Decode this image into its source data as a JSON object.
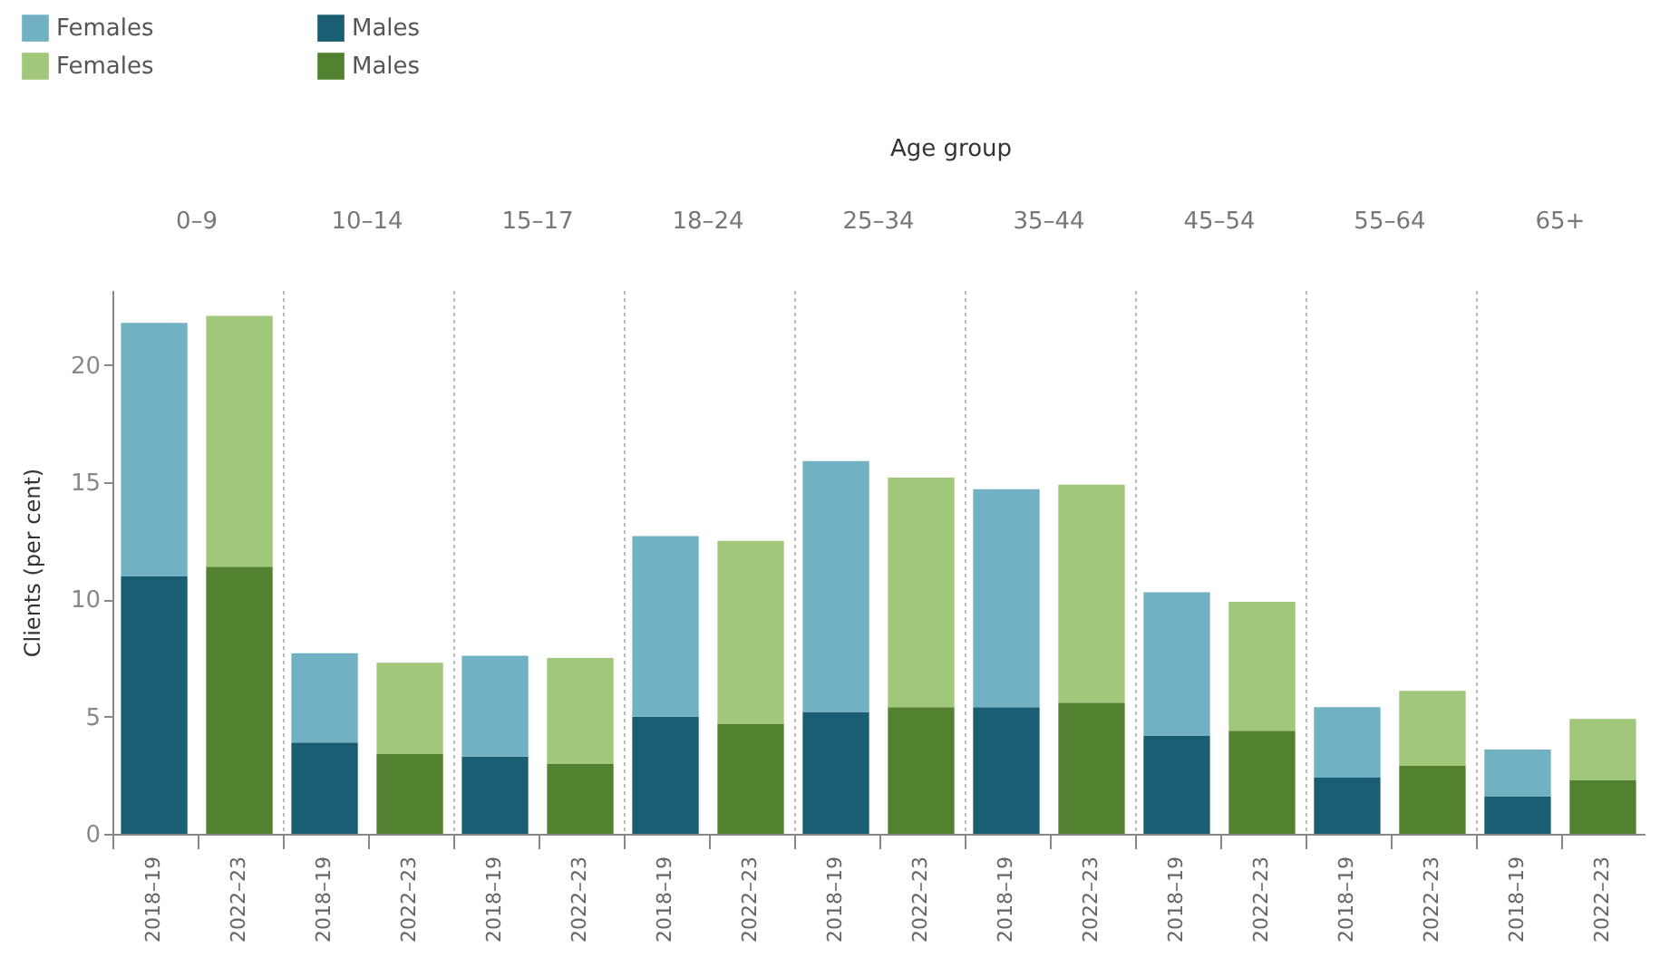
{
  "chart_data": {
    "type": "bar",
    "stacked": true,
    "title": "Age group",
    "ylabel": "Clients (per cent)",
    "categories": [
      "2018–19",
      "2022–23",
      "2018–19",
      "2022–23",
      "2018–19",
      "2022–23",
      "2018–19",
      "2022–23",
      "2018–19",
      "2022–23",
      "2018–19",
      "2022–23",
      "2018–19",
      "2022–23",
      "2018–19",
      "2022–23",
      "2018–19",
      "2022–23"
    ],
    "annotations": [
      "0–9",
      "10–14",
      "15–17",
      "18–24",
      "25–34",
      "35–44",
      "45–54",
      "55–64",
      "65+"
    ],
    "series": [
      {
        "name": "Males",
        "color": "#1a5e73",
        "values": [
          11.0,
          null,
          3.9,
          null,
          3.3,
          null,
          5.0,
          null,
          5.2,
          null,
          5.4,
          null,
          4.2,
          null,
          2.4,
          null,
          1.6,
          null
        ]
      },
      {
        "name": "Females",
        "color": "#71b1c3",
        "values": [
          10.8,
          null,
          3.8,
          null,
          4.3,
          null,
          7.7,
          null,
          10.7,
          null,
          9.3,
          null,
          6.1,
          null,
          3.0,
          null,
          2.0,
          null
        ]
      },
      {
        "name": "Males",
        "color": "#52812f",
        "values": [
          null,
          11.4,
          null,
          3.4,
          null,
          3.0,
          null,
          4.7,
          null,
          5.4,
          null,
          5.6,
          null,
          4.4,
          null,
          2.9,
          null,
          2.3
        ]
      },
      {
        "name": "Females",
        "color": "#a1c77b",
        "values": [
          null,
          10.7,
          null,
          3.9,
          null,
          4.5,
          null,
          7.8,
          null,
          9.8,
          null,
          9.3,
          null,
          5.5,
          null,
          3.2,
          null,
          2.6
        ]
      }
    ],
    "ylim": [
      0,
      23.2
    ],
    "yticks": [
      0,
      5,
      10,
      15,
      20
    ],
    "grid": "x",
    "legend": "top left"
  }
}
